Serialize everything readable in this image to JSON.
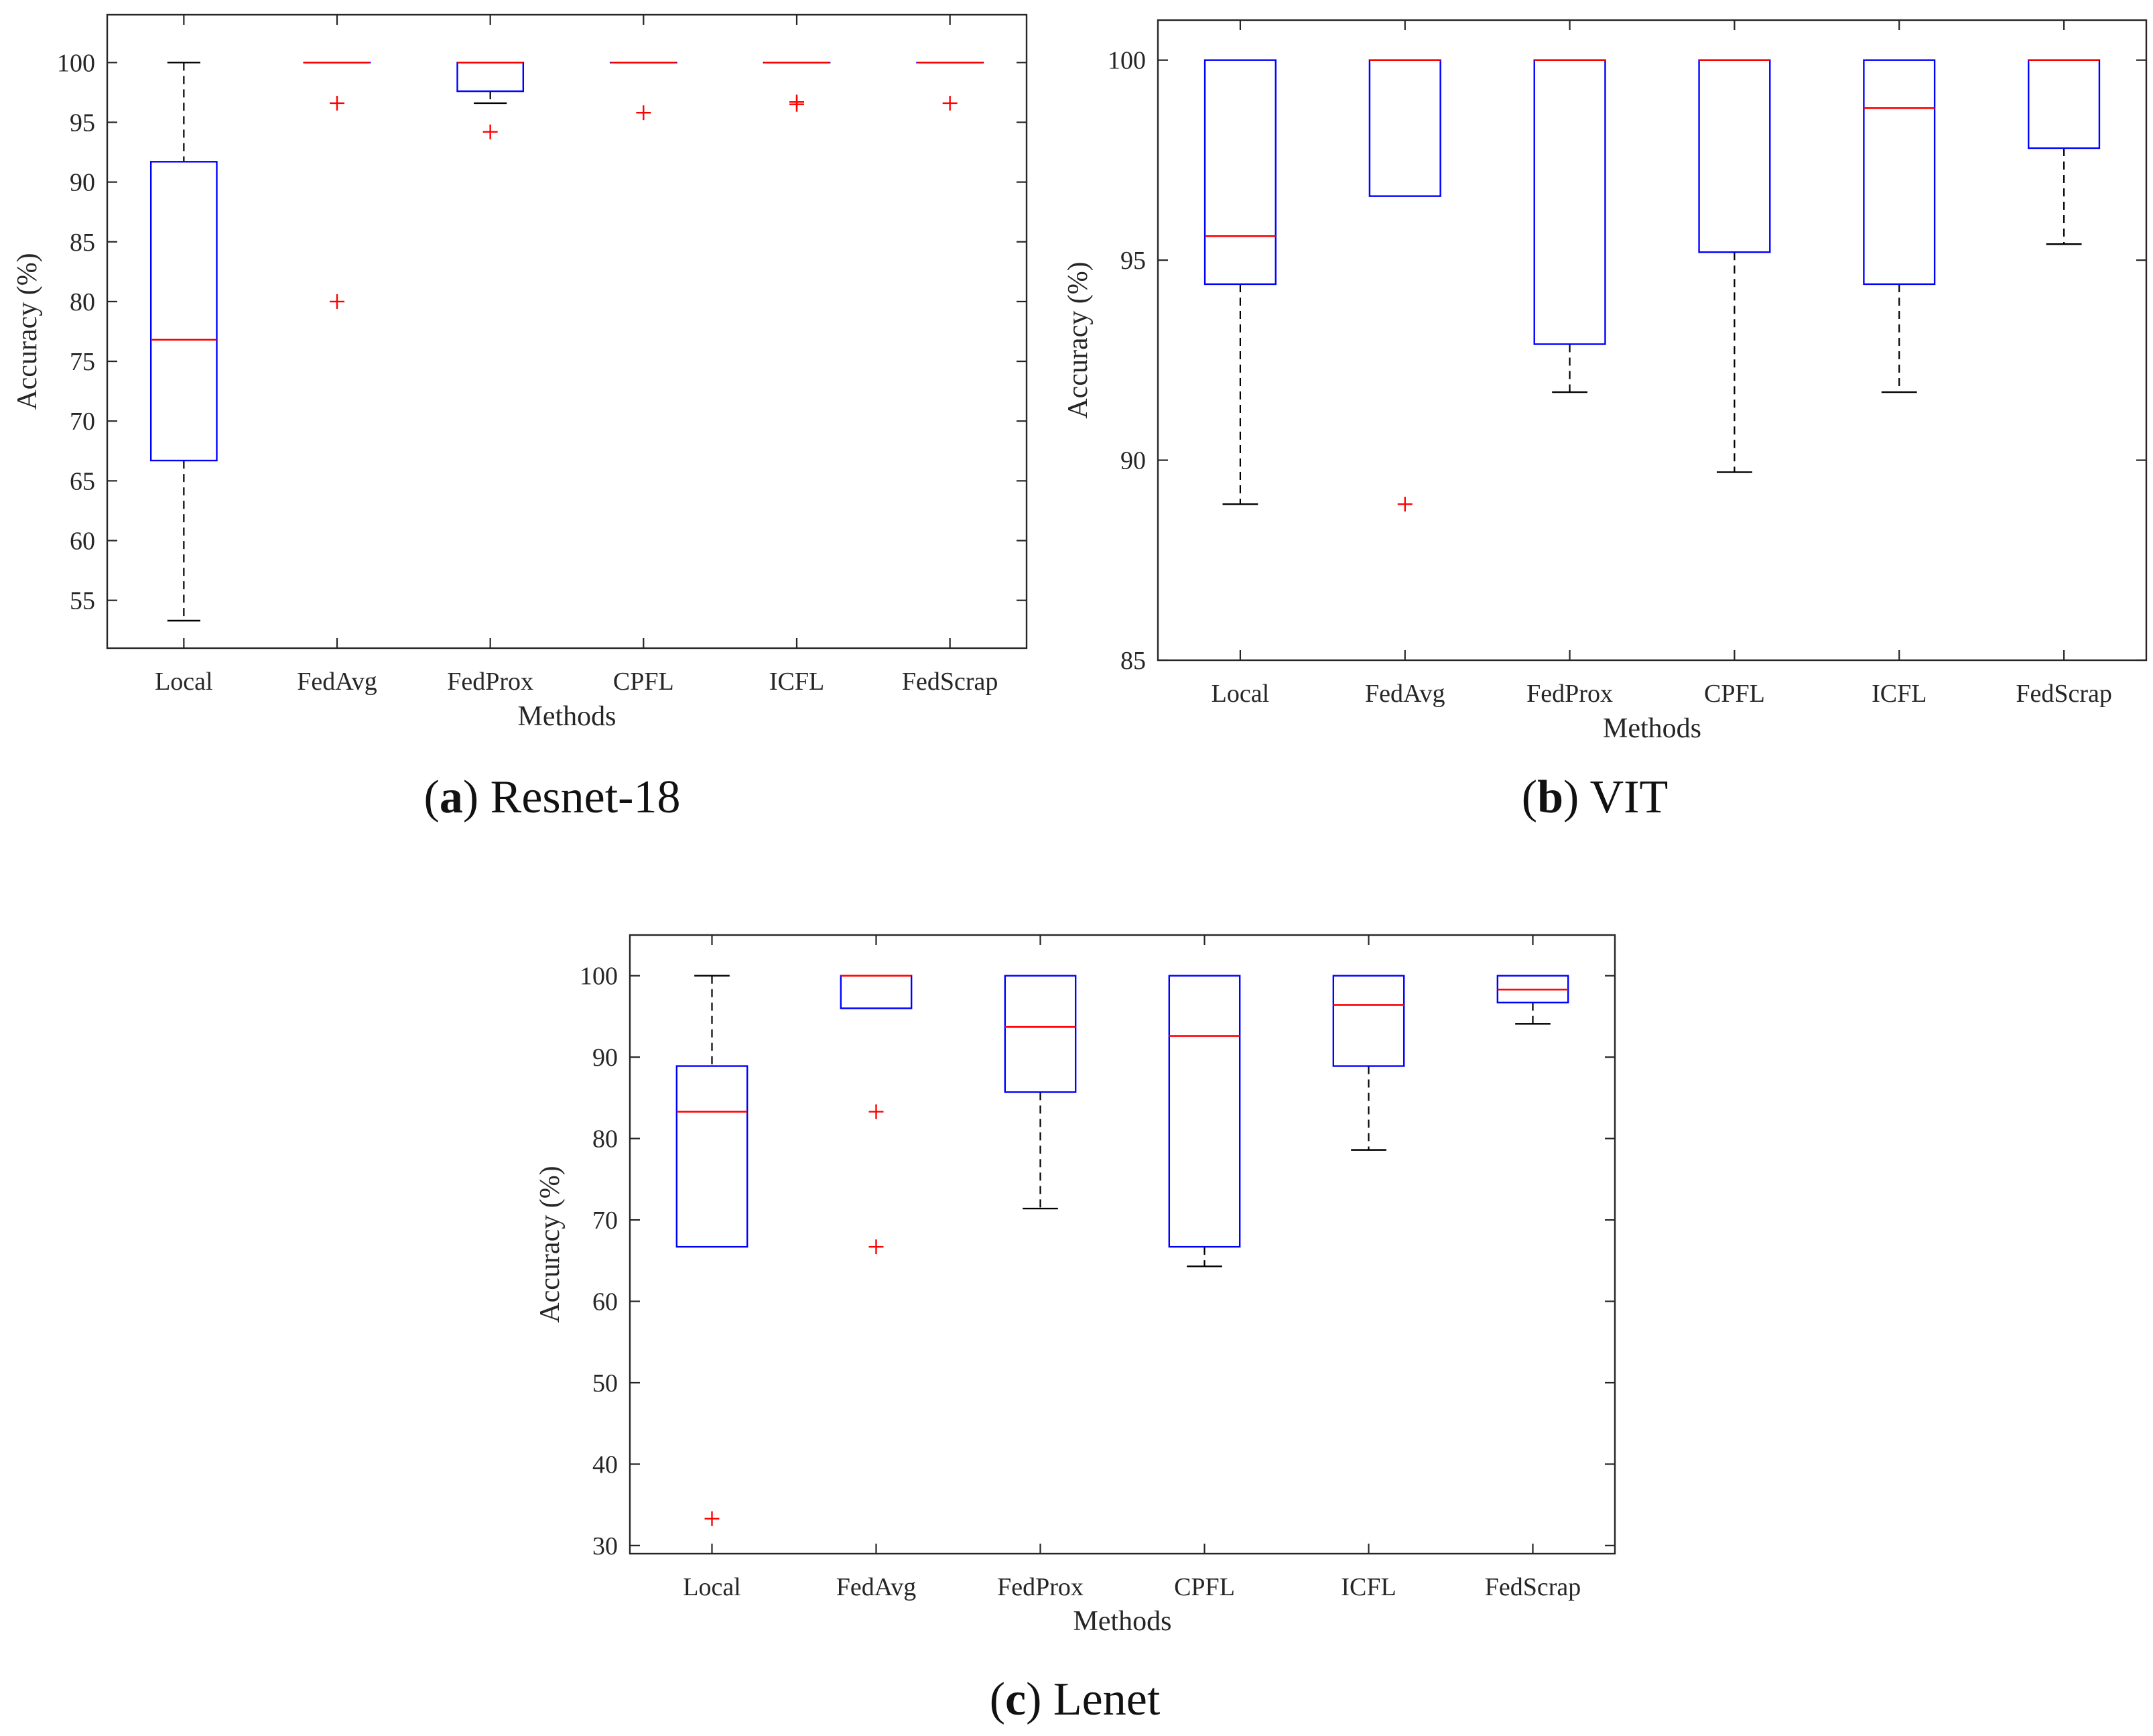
{
  "colors": {
    "box": "#0000ff",
    "median": "#ff0000",
    "outlier": "#ff0000",
    "whisker": "#000000",
    "axis": "#262626"
  },
  "chart_data": [
    {
      "type": "box",
      "caption_letter": "a",
      "caption_text": "Resnet-18",
      "title": "",
      "xlabel": "Methods",
      "ylabel": "Accuracy (%)",
      "ylim": [
        51,
        104
      ],
      "yticks": [
        55,
        60,
        65,
        70,
        75,
        80,
        85,
        90,
        95,
        100
      ],
      "categories": [
        "Local",
        "FedAvg",
        "FedProx",
        "CPFL",
        "ICFL",
        "FedScrap"
      ],
      "boxes": [
        {
          "q1": 66.7,
          "median": 76.8,
          "q3": 91.7,
          "whisker_low": 53.3,
          "whisker_high": 100,
          "outliers": []
        },
        {
          "q1": 100,
          "median": 100,
          "q3": 100,
          "whisker_low": 100,
          "whisker_high": 100,
          "outliers": [
            96.6,
            80.0
          ]
        },
        {
          "q1": 97.6,
          "median": 100,
          "q3": 100,
          "whisker_low": 96.6,
          "whisker_high": 100,
          "outliers": [
            94.2
          ]
        },
        {
          "q1": 100,
          "median": 100,
          "q3": 100,
          "whisker_low": 100,
          "whisker_high": 100,
          "outliers": [
            95.8
          ]
        },
        {
          "q1": 100,
          "median": 100,
          "q3": 100,
          "whisker_low": 100,
          "whisker_high": 100,
          "outliers": [
            96.5,
            96.7
          ]
        },
        {
          "q1": 100,
          "median": 100,
          "q3": 100,
          "whisker_low": 100,
          "whisker_high": 100,
          "outliers": [
            96.6
          ]
        }
      ]
    },
    {
      "type": "box",
      "caption_letter": "b",
      "caption_text": "VIT",
      "title": "",
      "xlabel": "Methods",
      "ylabel": "Accuracy (%)",
      "ylim": [
        85,
        101
      ],
      "yticks": [
        85,
        90,
        95,
        100
      ],
      "categories": [
        "Local",
        "FedAvg",
        "FedProx",
        "CPFL",
        "ICFL",
        "FedScrap"
      ],
      "boxes": [
        {
          "q1": 94.4,
          "median": 95.6,
          "q3": 100,
          "whisker_low": 88.9,
          "whisker_high": 100,
          "outliers": []
        },
        {
          "q1": 96.6,
          "median": 100,
          "q3": 100,
          "whisker_low": 96.6,
          "whisker_high": 100,
          "outliers": [
            88.9
          ]
        },
        {
          "q1": 92.9,
          "median": 100,
          "q3": 100,
          "whisker_low": 91.7,
          "whisker_high": 100,
          "outliers": []
        },
        {
          "q1": 95.2,
          "median": 100,
          "q3": 100,
          "whisker_low": 89.7,
          "whisker_high": 100,
          "outliers": []
        },
        {
          "q1": 94.4,
          "median": 98.8,
          "q3": 100,
          "whisker_low": 91.7,
          "whisker_high": 100,
          "outliers": []
        },
        {
          "q1": 97.8,
          "median": 100,
          "q3": 100,
          "whisker_low": 95.4,
          "whisker_high": 100,
          "outliers": []
        }
      ]
    },
    {
      "type": "box",
      "caption_letter": "c",
      "caption_text": "Lenet",
      "title": "",
      "xlabel": "Methods",
      "ylabel": "Accuracy (%)",
      "ylim": [
        29,
        105
      ],
      "yticks": [
        30,
        40,
        50,
        60,
        70,
        80,
        90,
        100
      ],
      "categories": [
        "Local",
        "FedAvg",
        "FedProx",
        "CPFL",
        "ICFL",
        "FedScrap"
      ],
      "boxes": [
        {
          "q1": 66.7,
          "median": 83.3,
          "q3": 88.9,
          "whisker_low": 66.7,
          "whisker_high": 100,
          "outliers": [
            33.3
          ]
        },
        {
          "q1": 96.0,
          "median": 100,
          "q3": 100,
          "whisker_low": 96.0,
          "whisker_high": 100,
          "outliers": [
            83.3,
            66.7
          ]
        },
        {
          "q1": 85.7,
          "median": 93.7,
          "q3": 100,
          "whisker_low": 71.4,
          "whisker_high": 100,
          "outliers": []
        },
        {
          "q1": 66.7,
          "median": 92.6,
          "q3": 100,
          "whisker_low": 64.3,
          "whisker_high": 100,
          "outliers": []
        },
        {
          "q1": 88.9,
          "median": 96.4,
          "q3": 100,
          "whisker_low": 78.6,
          "whisker_high": 100,
          "outliers": []
        },
        {
          "q1": 96.7,
          "median": 98.3,
          "q3": 100,
          "whisker_low": 94.1,
          "whisker_high": 100,
          "outliers": []
        }
      ]
    }
  ]
}
